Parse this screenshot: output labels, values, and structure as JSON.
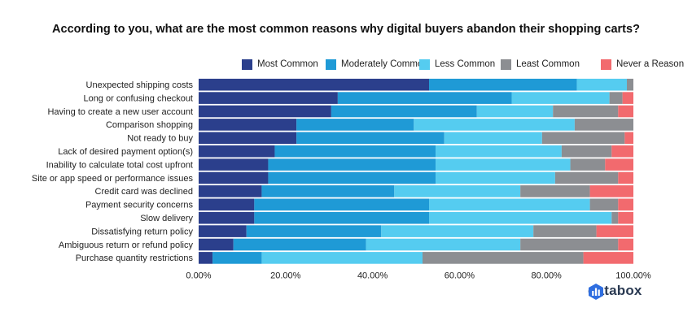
{
  "chart_data": {
    "type": "bar",
    "orientation": "horizontal",
    "stacked": true,
    "title": "According to you, what are the most common reasons why digital buyers abandon their shopping carts?",
    "xlabel": "",
    "ylabel": "",
    "xlim": [
      0,
      100
    ],
    "x_ticks": [
      "0.00%",
      "20.00%",
      "40.00%",
      "60.00%",
      "80.00%",
      "100.00%"
    ],
    "legend_position": "top-right",
    "categories": [
      "Unexpected shipping costs",
      "Long or confusing checkout",
      "Having to create a new user account",
      "Comparison shopping",
      "Not ready to buy",
      "Lack of desired payment option(s)",
      "Inability to calculate total cost upfront",
      "Site or app speed or performance issues",
      "Credit card was declined",
      "Payment security concerns",
      "Slow delivery",
      "Dissatisfying return policy",
      "Ambiguous return or refund policy",
      "Purchase quantity restrictions"
    ],
    "series": [
      {
        "name": "Most Common",
        "color": "#2b3f8c",
        "values": [
          53.0,
          32.0,
          30.5,
          22.5,
          22.5,
          17.5,
          16.0,
          16.0,
          14.5,
          12.8,
          12.8,
          11.0,
          8.0,
          3.2
        ]
      },
      {
        "name": "Moderately Common",
        "color": "#1f9ad6",
        "values": [
          34.0,
          40.0,
          33.5,
          27.0,
          34.0,
          37.0,
          38.5,
          38.5,
          30.5,
          40.2,
          40.2,
          31.0,
          30.5,
          11.3
        ]
      },
      {
        "name": "Less Common",
        "color": "#55ccf0",
        "values": [
          11.5,
          22.5,
          17.5,
          37.0,
          22.5,
          29.0,
          31.0,
          27.5,
          29.0,
          37.0,
          42.0,
          35.0,
          35.5,
          37.0
        ]
      },
      {
        "name": "Least Common",
        "color": "#8c8e92",
        "values": [
          1.5,
          3.0,
          15.0,
          13.5,
          19.0,
          11.5,
          8.0,
          14.5,
          16.0,
          6.5,
          1.5,
          14.5,
          22.5,
          37.0
        ]
      },
      {
        "name": "Never a Reason",
        "color": "#f26a6e",
        "values": [
          0.0,
          2.5,
          3.5,
          0.0,
          2.0,
          5.0,
          6.5,
          3.5,
          10.0,
          3.5,
          3.5,
          8.5,
          3.5,
          11.5
        ]
      }
    ]
  },
  "brand": {
    "name": "databox",
    "icon": "databox-logo-icon"
  }
}
